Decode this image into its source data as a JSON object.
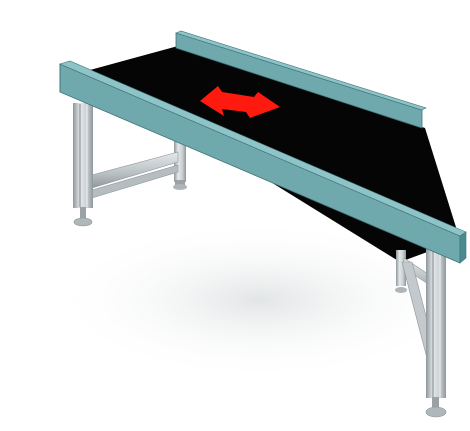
{
  "scene": {
    "subject": "belt-conveyor-table",
    "flow_direction_icon": "arrow-left-icon",
    "colors": {
      "background": "#ffffff",
      "belt": "#050505",
      "side_guide": "#6fa8ad",
      "side_guide_top": "#8ec4c8",
      "side_guide_dark": "#4d8a90",
      "frame_aluminum": "#c9cfd2",
      "frame_shadow": "#8e979b",
      "arrow": "#ff1a0f",
      "floor_shadow": "#e9ebec"
    }
  }
}
